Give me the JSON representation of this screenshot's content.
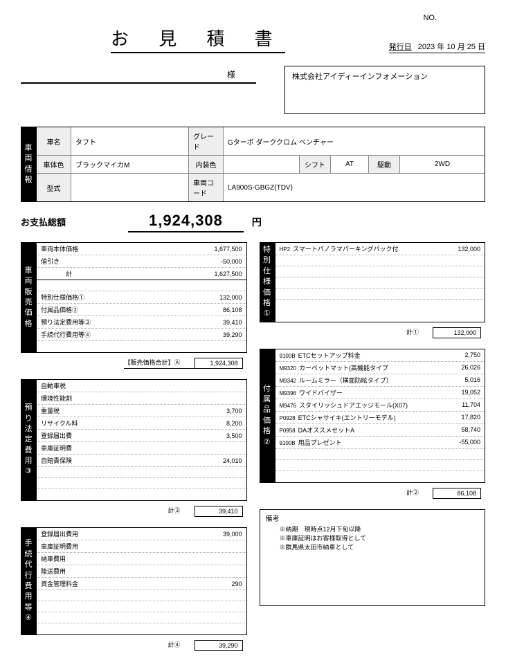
{
  "header": {
    "no_label": "NO.",
    "title": "お 見 積 書",
    "issue_label": "発行日",
    "year": "2023",
    "y": "年",
    "month": "10",
    "m": "月",
    "day": "25",
    "d": "日"
  },
  "customer": {
    "honorific": "様"
  },
  "company": {
    "name": "株式会社アイディーインフォメーション"
  },
  "vehicle": {
    "side": "車両情報",
    "name_lbl": "車名",
    "name": "タフト",
    "grade_lbl": "グレード",
    "grade": "Gターボ ダーククロム ベンチャー",
    "color_lbl": "車体色",
    "color": "ブラックマイカM",
    "interior_lbl": "内装色",
    "interior": "",
    "shift_lbl": "シフト",
    "shift": "AT",
    "drive_lbl": "駆動",
    "drive": "2WD",
    "type_lbl": "型式",
    "type": "",
    "code_lbl": "車両コード",
    "code": "LA900S-GBGZ(TDV)"
  },
  "total": {
    "label": "お支払総額",
    "amount": "1,924,308",
    "yen": "円"
  },
  "price": {
    "side": "車両販売価格",
    "rows": [
      {
        "nm": "車両本体価格",
        "val": "1,677,500"
      },
      {
        "nm": "値引き",
        "val": "-50,000"
      },
      {
        "nm": "　　　　計",
        "val": "1,627,500",
        "hr": true
      },
      {
        "nm": "",
        "val": ""
      },
      {
        "nm": "特別仕様価格①",
        "val": "132,000"
      },
      {
        "nm": "付属品価格②",
        "val": "86,108"
      },
      {
        "nm": "預り法定費用等③",
        "val": "39,410"
      },
      {
        "nm": "手続代行費用等④",
        "val": "39,290"
      },
      {
        "nm": "",
        "val": ""
      }
    ],
    "sub_nm": "【販売価格合計】Ⓐ",
    "sub_val": "1,924,308"
  },
  "legal": {
    "side": "預り法定費用③",
    "rows": [
      {
        "nm": "自動車税",
        "val": ""
      },
      {
        "nm": "環境性能割",
        "val": ""
      },
      {
        "nm": "重量税",
        "val": "3,700"
      },
      {
        "nm": "リサイクル料",
        "val": "8,200"
      },
      {
        "nm": "登録届出費",
        "val": "3,500"
      },
      {
        "nm": "車庫証明費",
        "val": ""
      },
      {
        "nm": "自賠責保険",
        "val": "24,010"
      },
      {
        "nm": "",
        "val": ""
      },
      {
        "nm": "",
        "val": ""
      },
      {
        "nm": "",
        "val": ""
      }
    ],
    "sub_nm": "計③",
    "sub_val": "39,410"
  },
  "proc": {
    "side": "手続代行費用等④",
    "rows": [
      {
        "nm": "登録届出費用",
        "val": "39,000"
      },
      {
        "nm": "車庫証明費用",
        "val": ""
      },
      {
        "nm": "納車費用",
        "val": ""
      },
      {
        "nm": "陸送費用",
        "val": ""
      },
      {
        "nm": "資金管理料金",
        "val": "290"
      },
      {
        "nm": "",
        "val": ""
      },
      {
        "nm": "",
        "val": ""
      },
      {
        "nm": "",
        "val": ""
      },
      {
        "nm": "",
        "val": ""
      }
    ],
    "sub_nm": "計④",
    "sub_val": "39,290"
  },
  "special": {
    "side": "特別仕様価格①",
    "rows": [
      {
        "code": "HP2",
        "nm": "スマートパノラマパーキングパック付",
        "val": "132,000"
      },
      {
        "nm": "",
        "val": ""
      },
      {
        "nm": "",
        "val": ""
      },
      {
        "nm": "",
        "val": ""
      },
      {
        "nm": "",
        "val": ""
      },
      {
        "nm": "",
        "val": ""
      }
    ],
    "sub_nm": "計①",
    "sub_val": "132,000"
  },
  "acc": {
    "side": "付属品価格②",
    "rows": [
      {
        "code": "9100B",
        "nm": "ETCセットアップ料金",
        "val": "2,750"
      },
      {
        "code": "M9320",
        "nm": "カーペットマット(高機能タイプ",
        "val": "26,026"
      },
      {
        "code": "M9342",
        "nm": "ルームミラー（横面防眩タイプ）",
        "val": "5,016"
      },
      {
        "code": "M9396",
        "nm": "ワイドバイザー",
        "val": "19,052"
      },
      {
        "code": "M9476",
        "nm": "スタイリッシュドアエッジモール(X07)",
        "val": "11,704"
      },
      {
        "code": "P0928",
        "nm": "ETCシャサイキ(エントリーモデル)",
        "val": "17,820"
      },
      {
        "code": "P0958",
        "nm": "DAオススメセットA",
        "val": "58,740"
      },
      {
        "code": "9100B",
        "nm": "用品プレゼント",
        "val": "-55,000"
      },
      {
        "nm": "",
        "val": ""
      },
      {
        "nm": "",
        "val": ""
      },
      {
        "nm": "",
        "val": ""
      }
    ],
    "sub_nm": "計②",
    "sub_val": "86,108"
  },
  "remarks": {
    "title": "備考",
    "lines": [
      "※納期　現時点12月下旬以降",
      "※車庫証明はお客様取得として",
      "※群馬県太田市納車として"
    ]
  }
}
